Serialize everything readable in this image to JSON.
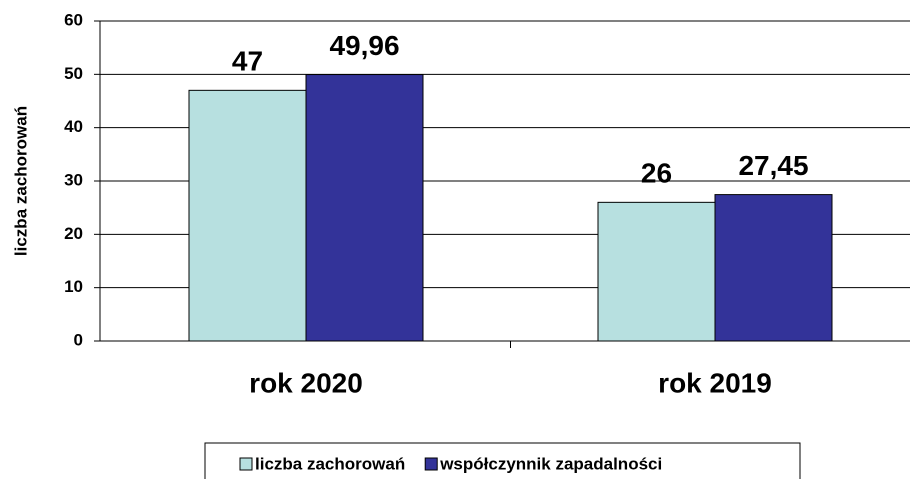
{
  "chart_data": {
    "type": "bar",
    "ylabel": "liczba zachorowań",
    "categories": [
      "rok 2020",
      "rok 2019"
    ],
    "series": [
      {
        "name": "liczba zachorowań",
        "color": "#b7e0e0",
        "values": [
          47,
          26
        ]
      },
      {
        "name": "współczynnik zapadalności",
        "color": "#333399",
        "values": [
          49.96,
          27.45
        ],
        "value_labels": [
          "49,96",
          "27,45"
        ]
      }
    ],
    "ylim": [
      0,
      60
    ],
    "yticks": [
      0,
      10,
      20,
      30,
      40,
      50,
      60
    ],
    "grid": true
  }
}
